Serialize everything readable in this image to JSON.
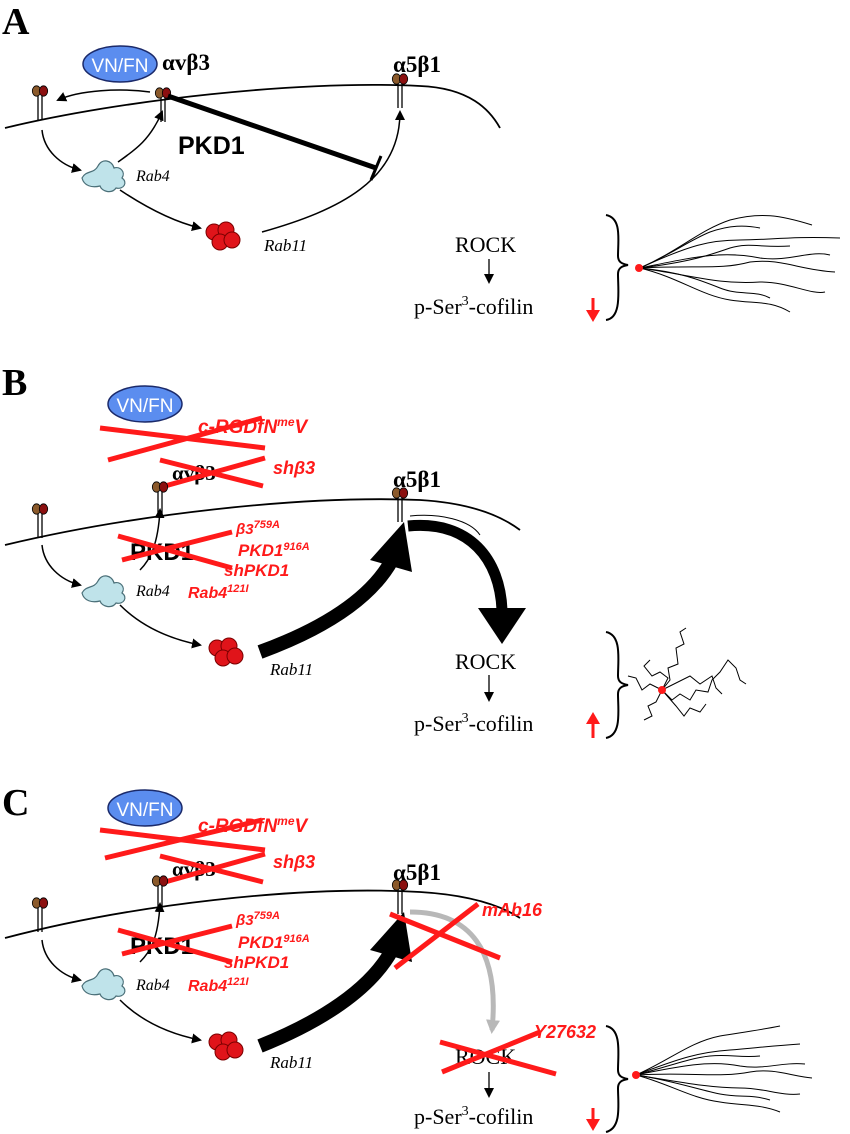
{
  "colors": {
    "red": "#ff1a1a",
    "blue": "#5b8def",
    "brown": "#8b5a2b",
    "darkred": "#8b1010",
    "endosome": "#bfe3ea",
    "grey": "#b8b8b8"
  },
  "panels": [
    {
      "letter": "A",
      "vnfn": "VN/FN",
      "avb3": "αvβ3",
      "a5b1": "α5β1",
      "pkd1": "PKD1",
      "rab4": "Rab4",
      "rab11": "Rab11",
      "rock": "ROCK",
      "cofilin_prefix": "p-Ser",
      "cofilin_sup": "3",
      "cofilin_suffix": "-cofilin",
      "arrow_direction": "down",
      "track_type": "straight"
    },
    {
      "letter": "B",
      "vnfn": "VN/FN",
      "crgd_prefix": "c-RGDfN",
      "crgd_sup": "me",
      "crgd_suffix": "V",
      "avb3": "αvβ3",
      "shb3": "shβ3",
      "a5b1": "α5β1",
      "pkd1": "PKD1",
      "b3_mut": "β3",
      "b3_sup": "759A",
      "pkd1_mut": "PKD1",
      "pkd1_sup": "916A",
      "shpkd1": "shPKD1",
      "rab4_mut": "Rab4",
      "rab4_sup": "121I",
      "rab4": "Rab4",
      "rab11": "Rab11",
      "rock": "ROCK",
      "cofilin_prefix": "p-Ser",
      "cofilin_sup": "3",
      "cofilin_suffix": "-cofilin",
      "arrow_direction": "up",
      "track_type": "random"
    },
    {
      "letter": "C",
      "vnfn": "VN/FN",
      "crgd_prefix": "c-RGDfN",
      "crgd_sup": "me",
      "crgd_suffix": "V",
      "avb3": "αvβ3",
      "shb3": "shβ3",
      "a5b1": "α5β1",
      "mab16": "mAb16",
      "pkd1": "PKD1",
      "b3_mut": "β3",
      "b3_sup": "759A",
      "pkd1_mut": "PKD1",
      "pkd1_sup": "916A",
      "shpkd1": "shPKD1",
      "rab4_mut": "Rab4",
      "rab4_sup": "121I",
      "rab4": "Rab4",
      "rab11": "Rab11",
      "rock": "ROCK",
      "y27632": "Y27632",
      "cofilin_prefix": "p-Ser",
      "cofilin_sup": "3",
      "cofilin_suffix": "-cofilin",
      "arrow_direction": "down",
      "track_type": "straight"
    }
  ]
}
